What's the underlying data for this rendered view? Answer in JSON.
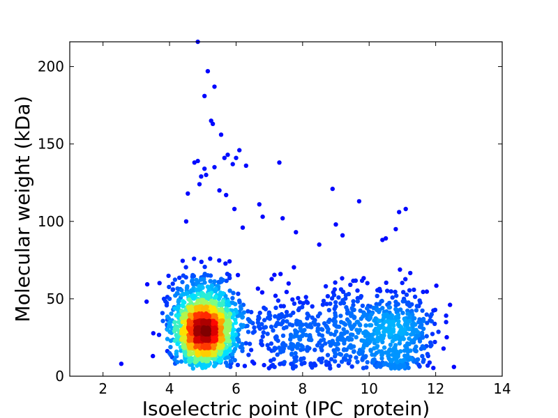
{
  "chart_data": {
    "type": "scatter",
    "title": "",
    "xlabel": "Isoelectric point (IPC_protein)",
    "ylabel": "Molecular weight (kDa)",
    "xlim": [
      1,
      14
    ],
    "ylim": [
      0,
      216
    ],
    "xticks": [
      2,
      4,
      6,
      8,
      10,
      12,
      14
    ],
    "yticks": [
      0,
      50,
      100,
      150,
      200
    ],
    "grid": false,
    "legend": "none",
    "color_scale": "density (jet colormap: blue = low, red = high)",
    "colormap": [
      "#00007f",
      "#0000ff",
      "#0080ff",
      "#00e5ff",
      "#80ff80",
      "#ffe500",
      "#ff8000",
      "#ff0000",
      "#800000"
    ],
    "density_clusters": [
      {
        "center": [
          5.05,
          28
        ],
        "spread": [
          0.42,
          10
        ],
        "count": 1500
      },
      {
        "center": [
          5.0,
          45
        ],
        "spread": [
          0.55,
          12
        ],
        "count": 350
      },
      {
        "center": [
          7.6,
          28
        ],
        "spread": [
          0.8,
          14
        ],
        "count": 230
      },
      {
        "center": [
          9.6,
          28
        ],
        "spread": [
          0.9,
          15
        ],
        "count": 320
      },
      {
        "center": [
          10.9,
          28
        ],
        "spread": [
          0.55,
          14
        ],
        "count": 340
      }
    ],
    "points": [
      [
        4.85,
        216
      ],
      [
        5.15,
        197
      ],
      [
        5.35,
        187
      ],
      [
        5.05,
        181
      ],
      [
        5.55,
        156
      ],
      [
        5.25,
        165
      ],
      [
        5.3,
        163
      ],
      [
        6.1,
        146
      ],
      [
        5.75,
        143
      ],
      [
        6.0,
        141
      ],
      [
        5.9,
        137
      ],
      [
        4.75,
        138
      ],
      [
        4.85,
        139
      ],
      [
        5.05,
        134
      ],
      [
        5.35,
        135
      ],
      [
        5.65,
        141
      ],
      [
        6.3,
        136
      ],
      [
        7.3,
        138
      ],
      [
        4.95,
        129
      ],
      [
        5.1,
        130
      ],
      [
        4.9,
        124
      ],
      [
        5.5,
        120
      ],
      [
        4.55,
        118
      ],
      [
        5.7,
        117
      ],
      [
        8.9,
        121
      ],
      [
        9.7,
        113
      ],
      [
        6.7,
        111
      ],
      [
        5.95,
        108
      ],
      [
        6.8,
        103
      ],
      [
        7.4,
        102
      ],
      [
        11.1,
        108
      ],
      [
        10.9,
        106
      ],
      [
        4.5,
        100
      ],
      [
        9.0,
        98
      ],
      [
        10.8,
        95
      ],
      [
        6.2,
        96
      ],
      [
        7.8,
        93
      ],
      [
        9.2,
        91
      ],
      [
        8.5,
        85
      ],
      [
        10.4,
        88
      ],
      [
        10.5,
        89
      ],
      [
        2.55,
        8
      ],
      [
        12.55,
        6
      ],
      [
        4.0,
        50
      ],
      [
        3.5,
        13
      ]
    ]
  }
}
